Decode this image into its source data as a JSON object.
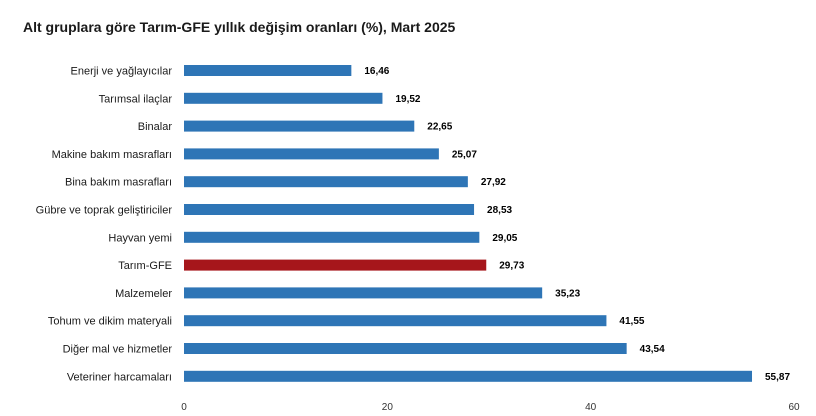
{
  "chart_data": {
    "type": "bar",
    "orientation": "horizontal",
    "title": "Alt gruplara göre Tarım-GFE yıllık değişim oranları (%), Mart 2025",
    "categories": [
      "Enerji  ve yağlayıcılar",
      "Tarımsal ilaçlar",
      "Binalar",
      "Makine bakım masrafları",
      "Bina bakım masrafları",
      "Gübre ve toprak geliştiriciler",
      "Hayvan yemi",
      "Tarım-GFE",
      "Malzemeler",
      "Tohum ve dikim materyali",
      "Diğer mal ve hizmetler",
      "Veteriner harcamaları"
    ],
    "values": [
      16.46,
      19.52,
      22.65,
      25.07,
      27.92,
      28.53,
      29.05,
      29.73,
      35.23,
      41.55,
      43.54,
      55.87
    ],
    "value_labels": [
      "16,46",
      "19,52",
      "22,65",
      "25,07",
      "27,92",
      "28,53",
      "29,05",
      "29,73",
      "35,23",
      "41,55",
      "43,54",
      "55,87"
    ],
    "highlight_category": "Tarım-GFE",
    "xlim": [
      0,
      60
    ],
    "xticks": [
      0,
      20,
      40,
      60
    ],
    "xlabel": "",
    "ylabel": "",
    "grid": false,
    "legend": "none",
    "colors": {
      "bar": "#2e75b6",
      "highlight": "#a6161b"
    }
  }
}
